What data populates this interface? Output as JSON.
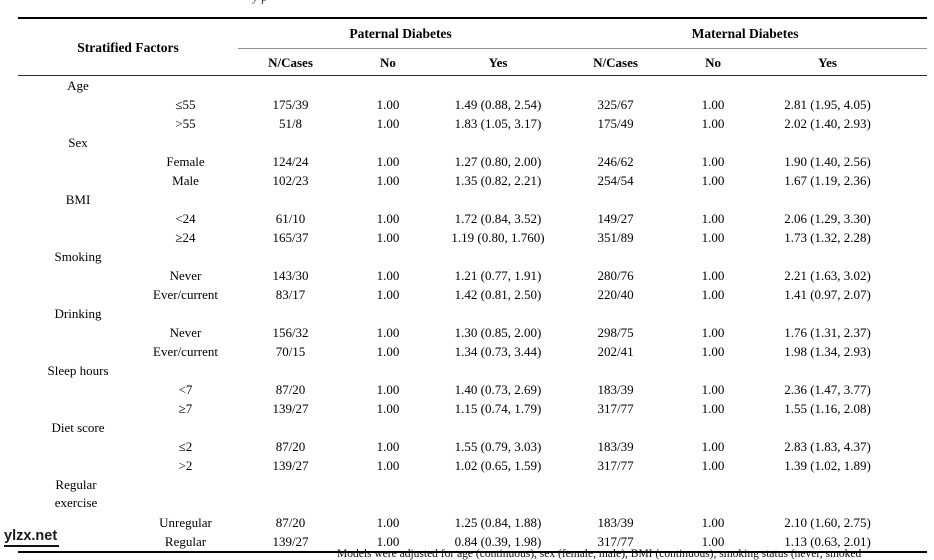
{
  "page": {
    "caption_fragment": "yp",
    "watermark": "ylzx.net",
    "footnote": "Models were adjusted for age (continuous), sex (female, male), BMI (continuous), smoking status (never, smoked"
  },
  "table": {
    "header": {
      "row_label": "Stratified Factors",
      "group_paternal": "Paternal Diabetes",
      "group_maternal": "Maternal Diabetes",
      "paternal_n_cases": "N/Cases",
      "paternal_no": "No",
      "paternal_yes": "Yes",
      "maternal_n_cases": "N/Cases",
      "maternal_no": "No",
      "maternal_yes": "Yes"
    },
    "sections": [
      {
        "factor": "Age",
        "rows": [
          {
            "stratum": "≤55",
            "cells": [
              "175/39",
              "1.00",
              "1.49 (0.88, 2.54)",
              "325/67",
              "1.00",
              "2.81 (1.95, 4.05)"
            ]
          },
          {
            "stratum": ">55",
            "cells": [
              "51/8",
              "1.00",
              "1.83 (1.05, 3.17)",
              "175/49",
              "1.00",
              "2.02 (1.40, 2.93)"
            ]
          }
        ]
      },
      {
        "factor": "Sex",
        "rows": [
          {
            "stratum": "Female",
            "cells": [
              "124/24",
              "1.00",
              "1.27 (0.80, 2.00)",
              "246/62",
              "1.00",
              "1.90 (1.40, 2.56)"
            ]
          },
          {
            "stratum": "Male",
            "cells": [
              "102/23",
              "1.00",
              "1.35 (0.82, 2.21)",
              "254/54",
              "1.00",
              "1.67 (1.19, 2.36)"
            ]
          }
        ]
      },
      {
        "factor": "BMI",
        "rows": [
          {
            "stratum": "<24",
            "cells": [
              "61/10",
              "1.00",
              "1.72 (0.84, 3.52)",
              "149/27",
              "1.00",
              "2.06 (1.29, 3.30)"
            ]
          },
          {
            "stratum": "≥24",
            "cells": [
              "165/37",
              "1.00",
              "1.19 (0.80, 1.760)",
              "351/89",
              "1.00",
              "1.73 (1.32, 2.28)"
            ]
          }
        ]
      },
      {
        "factor": "Smoking",
        "rows": [
          {
            "stratum": "Never",
            "cells": [
              "143/30",
              "1.00",
              "1.21 (0.77, 1.91)",
              "280/76",
              "1.00",
              "2.21 (1.63, 3.02)"
            ]
          },
          {
            "stratum": "Ever/current",
            "cells": [
              "83/17",
              "1.00",
              "1.42 (0.81, 2.50)",
              "220/40",
              "1.00",
              "1.41 (0.97, 2.07)"
            ]
          }
        ]
      },
      {
        "factor": "Drinking",
        "rows": [
          {
            "stratum": "Never",
            "cells": [
              "156/32",
              "1.00",
              "1.30 (0.85, 2.00)",
              "298/75",
              "1.00",
              "1.76 (1.31, 2.37)"
            ]
          },
          {
            "stratum": "Ever/current",
            "cells": [
              "70/15",
              "1.00",
              "1.34 (0.73, 3.44)",
              "202/41",
              "1.00",
              "1.98 (1.34, 2.93)"
            ]
          }
        ]
      },
      {
        "factor": "Sleep hours",
        "rows": [
          {
            "stratum": "<7",
            "cells": [
              "87/20",
              "1.00",
              "1.40 (0.73, 2.69)",
              "183/39",
              "1.00",
              "2.36 (1.47, 3.77)"
            ]
          },
          {
            "stratum": "≥7",
            "cells": [
              "139/27",
              "1.00",
              "1.15 (0.74, 1.79)",
              "317/77",
              "1.00",
              "1.55 (1.16, 2.08)"
            ]
          }
        ]
      },
      {
        "factor": "Diet score",
        "rows": [
          {
            "stratum": "≤2",
            "cells": [
              "87/20",
              "1.00",
              "1.55 (0.79, 3.03)",
              "183/39",
              "1.00",
              "2.83 (1.83, 4.37)"
            ]
          },
          {
            "stratum": ">2",
            "cells": [
              "139/27",
              "1.00",
              "1.02 (0.65, 1.59)",
              "317/77",
              "1.00",
              "1.39 (1.02, 1.89)"
            ]
          }
        ]
      },
      {
        "factor": "Regular exercise",
        "wrap": true,
        "rows": [
          {
            "stratum": "Unregular",
            "cells": [
              "87/20",
              "1.00",
              "1.25 (0.84, 1.88)",
              "183/39",
              "1.00",
              "2.10 (1.60, 2.75)"
            ]
          },
          {
            "stratum": "Regular",
            "cells": [
              "139/27",
              "1.00",
              "0.84 (0.39, 1.98)",
              "317/77",
              "1.00",
              "1.13 (0.63, 2.01)"
            ]
          }
        ]
      }
    ]
  }
}
